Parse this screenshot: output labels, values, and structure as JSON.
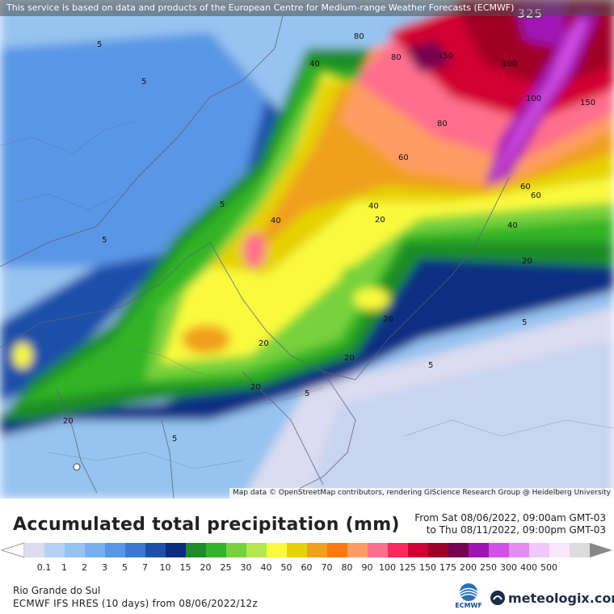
{
  "map": {
    "notice": "This service is based on data and products of the European Centre for Medium-range Weather Forecasts (ECMWF)",
    "attribution": "Map data © OpenStreetMap contributors, rendering GIScience Research Group @ Heidelberg University",
    "max_label": "325",
    "contour_labels": [
      {
        "text": "5",
        "value": 5
      },
      {
        "text": "5",
        "value": 5
      },
      {
        "text": "5",
        "value": 5
      },
      {
        "text": "5",
        "value": 5
      },
      {
        "text": "5",
        "value": 5
      },
      {
        "text": "5",
        "value": 5
      },
      {
        "text": "5",
        "value": 5
      },
      {
        "text": "5",
        "value": 5
      },
      {
        "text": "20",
        "value": 20
      },
      {
        "text": "20",
        "value": 20
      },
      {
        "text": "20",
        "value": 20
      },
      {
        "text": "20",
        "value": 20
      },
      {
        "text": "20",
        "value": 20
      },
      {
        "text": "20",
        "value": 20
      },
      {
        "text": "20",
        "value": 20
      },
      {
        "text": "40",
        "value": 40
      },
      {
        "text": "40",
        "value": 40
      },
      {
        "text": "40",
        "value": 40
      },
      {
        "text": "40",
        "value": 40
      },
      {
        "text": "60",
        "value": 60
      },
      {
        "text": "60",
        "value": 60
      },
      {
        "text": "60",
        "value": 60
      },
      {
        "text": "80",
        "value": 80
      },
      {
        "text": "80",
        "value": 80
      },
      {
        "text": "80",
        "value": 80
      },
      {
        "text": "100",
        "value": 100
      },
      {
        "text": "100",
        "value": 100
      },
      {
        "text": "150",
        "value": 150
      },
      {
        "text": "150",
        "value": 150
      }
    ]
  },
  "legend": {
    "title": "Accumulated total precipitation (mm)",
    "period_from": "From Sat 08/06/2022, 09:00am GMT-03",
    "period_to": "to Thu 08/11/2022, 09:00pm GMT-03",
    "ticks": [
      "0.1",
      "1",
      "2",
      "3",
      "5",
      "7",
      "10",
      "15",
      "20",
      "25",
      "30",
      "40",
      "50",
      "60",
      "70",
      "80",
      "90",
      "100",
      "125",
      "150",
      "175",
      "200",
      "250",
      "300",
      "400",
      "500"
    ],
    "colors": [
      "#dcdcf0",
      "#b4d2f5",
      "#96c3f0",
      "#78aff0",
      "#5a96e6",
      "#3c78d2",
      "#1e50aa",
      "#0a2d82",
      "#1e8c28",
      "#32b428",
      "#78d23c",
      "#b4e650",
      "#fafa3c",
      "#e6d200",
      "#f0a01e",
      "#ff7814",
      "#ff9c64",
      "#ff6e8c",
      "#ff285a",
      "#d20032",
      "#a00028",
      "#780050",
      "#a014b4",
      "#d250e6",
      "#e68cf5",
      "#f0c8fa",
      "#fae6fa",
      "#dcdcdc"
    ],
    "region": "Rio Grande do Sul",
    "model": "ECMWF IFS HRES (10 days) from 08/06/2022/12z",
    "ecmwf_logo_text": "ECMWF",
    "brand": "meteologix.com"
  }
}
